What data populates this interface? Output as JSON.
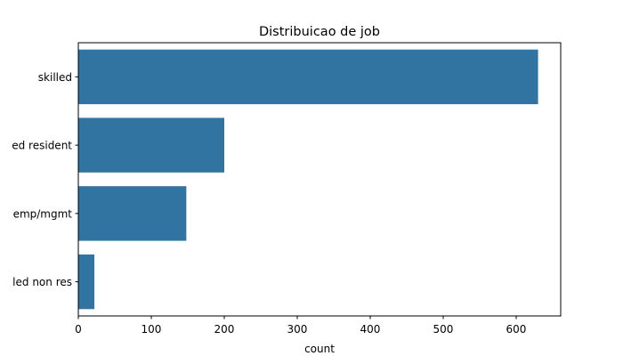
{
  "chart_data": {
    "type": "bar",
    "orientation": "horizontal",
    "title": "Distribuicao de job",
    "xlabel": "count",
    "ylabel": "",
    "categories": [
      "skilled",
      "unskilled resident",
      "high qualif/self emp/mgmt",
      "unemp/unskilled non res"
    ],
    "category_tick_labels": [
      "skilled",
      "ed resident",
      "emp/mgmt",
      "led non res"
    ],
    "values": [
      630,
      200,
      148,
      22
    ],
    "xlim": [
      0,
      661
    ],
    "xticks": [
      0,
      100,
      200,
      300,
      400,
      500,
      600
    ],
    "grid": false,
    "bar_color": "#3274a1"
  }
}
